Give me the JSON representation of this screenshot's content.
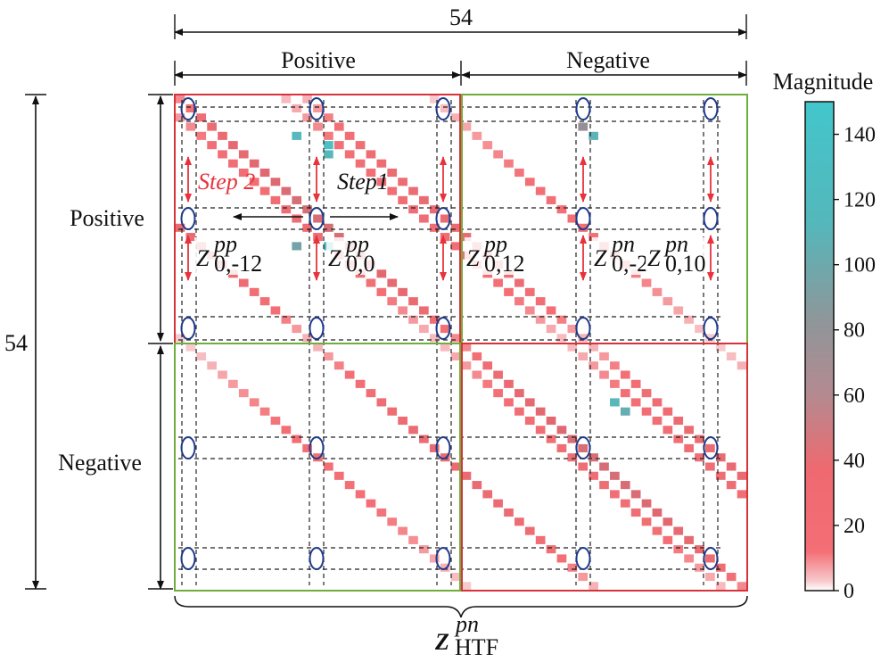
{
  "dimensions": {
    "top": "54",
    "left": "54",
    "col_positive": "Positive",
    "col_negative": "Negative",
    "row_positive": "Positive",
    "row_negative": "Negative"
  },
  "matrix": {
    "size": 54,
    "half": 27,
    "diagonal_offsets": [
      -26,
      -14,
      -2,
      0,
      10,
      12,
      24
    ],
    "peak_cells": [
      {
        "row": 4,
        "col": 11,
        "value": 130
      },
      {
        "row": 5,
        "col": 14,
        "value": 140
      },
      {
        "row": 6,
        "col": 14,
        "value": 125
      },
      {
        "row": 16,
        "col": 14,
        "value": 135
      },
      {
        "row": 16,
        "col": 11,
        "value": 95
      },
      {
        "row": 4,
        "col": 39,
        "value": 120
      },
      {
        "row": 3,
        "col": 38,
        "value": 70
      },
      {
        "row": 33,
        "col": 41,
        "value": 125
      },
      {
        "row": 34,
        "col": 42,
        "value": 110
      }
    ]
  },
  "annotations": {
    "step1": "Step1",
    "step2": "Step 2",
    "z_labels": [
      {
        "base": "Z",
        "sup": "pp",
        "sub": "0,-12"
      },
      {
        "base": "Z",
        "sup": "pp",
        "sub": "0,0"
      },
      {
        "base": "Z",
        "sup": "pp",
        "sub": "0,12"
      },
      {
        "base": "Z",
        "sup": "pn",
        "sub": "0,-2"
      },
      {
        "base": "Z",
        "sup": "pn",
        "sub": "0,10"
      }
    ],
    "bottom_label": {
      "base": "Z",
      "sup": "pn",
      "sub": "HTF"
    }
  },
  "colorbar": {
    "title": "Magnitude",
    "min": 0,
    "max": 150,
    "ticks": [
      0,
      20,
      40,
      60,
      80,
      100,
      120,
      140
    ]
  },
  "colors": {
    "low": "#fbe9ea",
    "mid_low": "#f36f75",
    "mid": "#a5888f",
    "high": "#43c6cb",
    "frame_red": "#d6333a",
    "frame_green": "#6fae3c",
    "ellipse": "#1e3a8c",
    "arrow_red": "#e8323c"
  }
}
